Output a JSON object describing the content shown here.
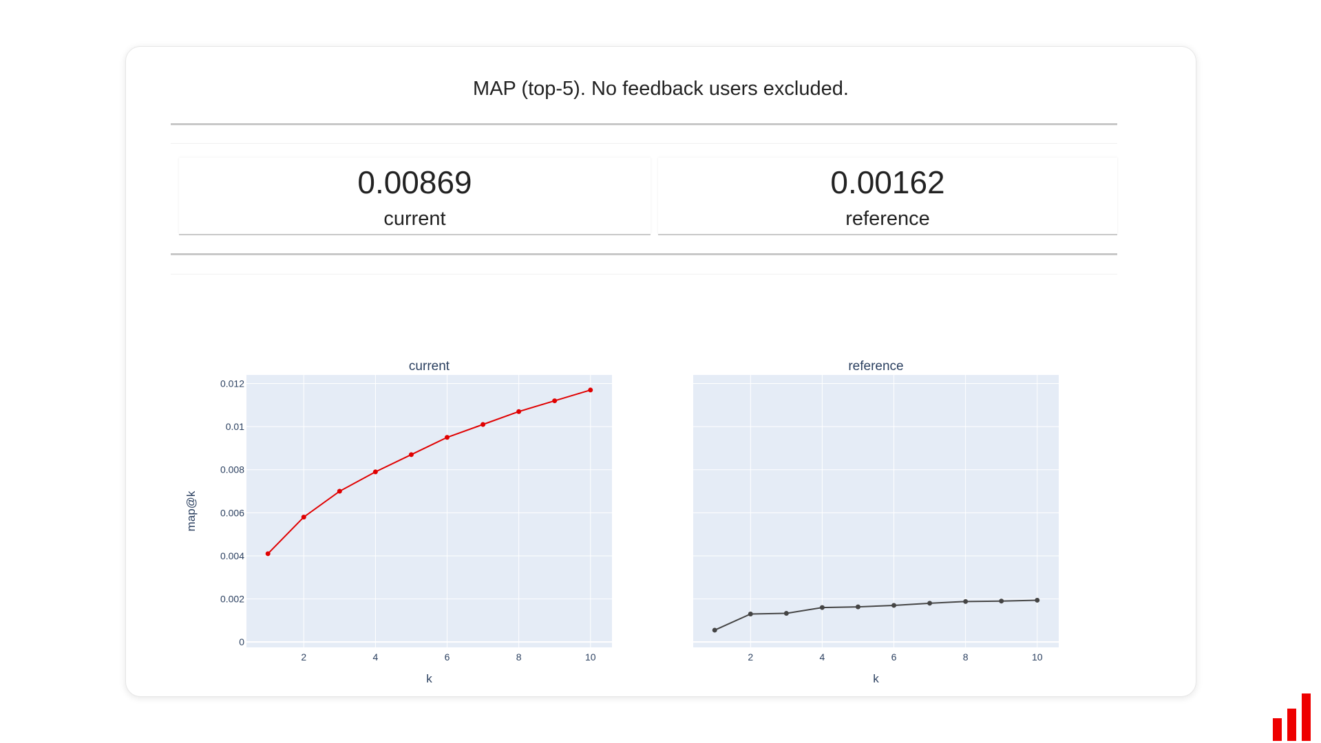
{
  "header": {
    "title": "MAP (top-5). No feedback users excluded."
  },
  "metrics": [
    {
      "value": "0.00869",
      "label": "current"
    },
    {
      "value": "0.00162",
      "label": "reference"
    }
  ],
  "colors": {
    "current_line": "#e00000",
    "reference_line": "#444444",
    "plot_bg": "#e5ecf6",
    "grid": "#ffffff",
    "logo": "#ee0000"
  },
  "chart_data": [
    {
      "type": "line",
      "title": "current",
      "xlabel": "k",
      "ylabel": "map@k",
      "x": [
        1,
        2,
        3,
        4,
        5,
        6,
        7,
        8,
        9,
        10
      ],
      "series": [
        {
          "values": [
            0.0041,
            0.0058,
            0.007,
            0.0079,
            0.0087,
            0.0095,
            0.0101,
            0.0107,
            0.0112,
            0.0117
          ]
        }
      ],
      "xlim": [
        0.4,
        10.6
      ],
      "ylim": [
        -0.00025,
        0.0124
      ],
      "xticks": [
        2,
        4,
        6,
        8,
        10
      ],
      "yticks": [
        0,
        0.002,
        0.004,
        0.006,
        0.008,
        0.01,
        0.012
      ],
      "ytick_labels": [
        "0",
        "0.002",
        "0.004",
        "0.006",
        "0.008",
        "0.01",
        "0.012"
      ],
      "grid": true,
      "color": "#e00000"
    },
    {
      "type": "line",
      "title": "reference",
      "xlabel": "k",
      "ylabel": "",
      "x": [
        1,
        2,
        3,
        4,
        5,
        6,
        7,
        8,
        9,
        10
      ],
      "series": [
        {
          "values": [
            0.00055,
            0.0013,
            0.00133,
            0.0016,
            0.00163,
            0.0017,
            0.0018,
            0.00188,
            0.0019,
            0.00194
          ]
        }
      ],
      "xlim": [
        0.4,
        10.6
      ],
      "ylim": [
        -0.00025,
        0.0124
      ],
      "xticks": [
        2,
        4,
        6,
        8,
        10
      ],
      "yticks": [
        0,
        0.002,
        0.004,
        0.006,
        0.008,
        0.01,
        0.012
      ],
      "ytick_labels": [],
      "grid": true,
      "color": "#444444"
    }
  ]
}
